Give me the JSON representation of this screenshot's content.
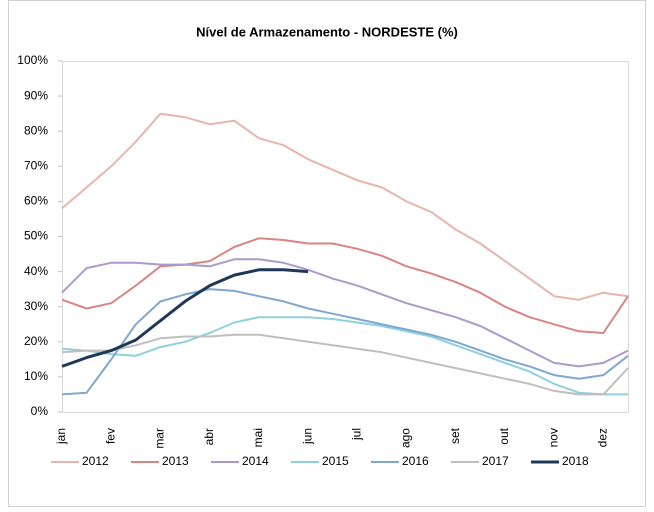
{
  "chart_data": {
    "type": "line",
    "title": "Nível de Armazenamento - NORDESTE (%)",
    "categories": [
      "jan",
      null,
      "fev",
      null,
      "mar",
      null,
      "abr",
      null,
      "mai",
      null,
      "jun",
      null,
      "jul",
      null,
      "ago",
      null,
      "set",
      null,
      "out",
      null,
      "nov",
      null,
      "dez",
      null
    ],
    "ylim": [
      0,
      100
    ],
    "yticks": [
      {
        "value": 0,
        "label": "0%"
      },
      {
        "value": 10,
        "label": "10%"
      },
      {
        "value": 20,
        "label": "20%"
      },
      {
        "value": 30,
        "label": "30%"
      },
      {
        "value": 40,
        "label": "40%"
      },
      {
        "value": 50,
        "label": "50%"
      },
      {
        "value": 60,
        "label": "60%"
      },
      {
        "value": 70,
        "label": "70%"
      },
      {
        "value": 80,
        "label": "80%"
      },
      {
        "value": 90,
        "label": "90%"
      },
      {
        "value": 100,
        "label": "100%"
      }
    ],
    "grid": false,
    "legend": "bottom",
    "series": [
      {
        "name": "2012",
        "color": "#e8b4ae",
        "values": [
          58,
          64,
          70,
          77,
          85,
          84,
          82,
          83,
          78,
          76,
          72,
          69,
          66,
          64,
          60,
          57,
          52,
          48,
          43,
          38,
          33,
          32,
          34,
          33
        ]
      },
      {
        "name": "2013",
        "color": "#d98683",
        "values": [
          32,
          29.5,
          31,
          36,
          41.5,
          42,
          43,
          47,
          49.5,
          49,
          48,
          48,
          46.5,
          44.5,
          41.5,
          39.5,
          37,
          34,
          30,
          27,
          25,
          23,
          22.5,
          33
        ]
      },
      {
        "name": "2014",
        "color": "#ab9acb",
        "values": [
          34,
          41,
          42.5,
          42.5,
          42,
          42,
          41.5,
          43.5,
          43.5,
          42.5,
          40.5,
          38,
          36,
          33.5,
          31,
          29,
          27,
          24.5,
          21,
          17.5,
          14,
          13,
          14,
          17.5
        ]
      },
      {
        "name": "2015",
        "color": "#8fd0dd",
        "values": [
          18,
          17.5,
          16.5,
          16,
          18.5,
          20,
          22.5,
          25.5,
          27,
          27,
          27,
          26.5,
          25.5,
          24.5,
          23,
          21.5,
          19,
          16.5,
          14,
          11.5,
          8,
          5.5,
          5,
          5
        ]
      },
      {
        "name": "2016",
        "color": "#7fa8d0",
        "values": [
          5,
          5.5,
          15,
          25,
          31.5,
          33.5,
          35,
          34.5,
          33,
          31.5,
          29.5,
          28,
          26.5,
          25,
          23.5,
          22,
          20,
          17.5,
          15,
          13,
          10.5,
          9.5,
          10.5,
          16
        ]
      },
      {
        "name": "2017",
        "color": "#bfbfbf",
        "values": [
          17,
          17.5,
          17.5,
          19,
          21,
          21.5,
          21.5,
          22,
          22,
          21,
          20,
          19,
          18,
          17,
          15.5,
          14,
          12.5,
          11,
          9.5,
          8,
          6,
          5,
          5,
          12.5
        ]
      },
      {
        "name": "2018",
        "color": "#1f3858",
        "values": [
          13,
          15.5,
          17.5,
          20.5,
          26,
          31.5,
          36,
          39,
          40.5,
          40.5,
          40,
          null,
          null,
          null,
          null,
          null,
          null,
          null,
          null,
          null,
          null,
          null,
          null,
          null
        ]
      }
    ]
  }
}
